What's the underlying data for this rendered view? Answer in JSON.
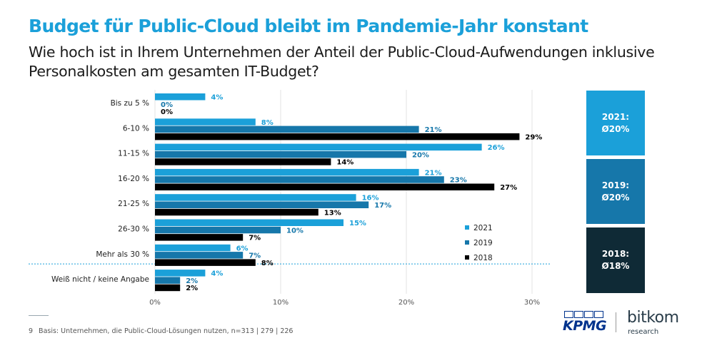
{
  "header": {
    "title": "Budget für Public-Cloud bleibt im Pandemie-Jahr konstant",
    "subtitle": "Wie hoch ist in Ihrem Unternehmen der Anteil der Public-Cloud-Aufwendungen inklusive Personalkosten am gesamten IT-Budget?"
  },
  "chart_data": {
    "type": "bar",
    "orientation": "horizontal",
    "categories": [
      "Bis zu 5 %",
      "6-10 %",
      "11-15 %",
      "16-20 %",
      "21-25 %",
      "26-30 %",
      "Mehr als 30 %",
      "Weiß nicht / keine Angabe"
    ],
    "series": [
      {
        "name": "2021",
        "color": "#1ba0d9",
        "values": [
          4,
          8,
          26,
          21,
          16,
          15,
          6,
          4
        ]
      },
      {
        "name": "2019",
        "color": "#1677aa",
        "values": [
          0,
          21,
          20,
          23,
          17,
          10,
          7,
          2
        ]
      },
      {
        "name": "2018",
        "color": "#000000",
        "values": [
          0,
          29,
          14,
          27,
          13,
          7,
          8,
          2
        ]
      }
    ],
    "label_colors": {
      "2021": "#1ba0d9",
      "2019": "#1677aa",
      "2018": "#000000"
    },
    "xlim": [
      0,
      30
    ],
    "xticks": [
      "0%",
      "10%",
      "20%",
      "30%"
    ],
    "grid": true,
    "legend": "bottom-right inside plot"
  },
  "averages": [
    {
      "label": "2021:",
      "value": "Ø20%",
      "color": "#1ba0d9"
    },
    {
      "label": "2019:",
      "value": "Ø20%",
      "color": "#1677aa"
    },
    {
      "label": "2018:",
      "value": "Ø18%",
      "color": "#0f2a36"
    }
  ],
  "footer": {
    "page": "9",
    "basis": "Basis: Unternehmen, die Public-Cloud-Lösungen nutzen, n=313 | 279 | 226"
  },
  "logos": {
    "kpmg": "KPMG",
    "bitkom": "bitkom",
    "bitkom_sub": "research"
  }
}
